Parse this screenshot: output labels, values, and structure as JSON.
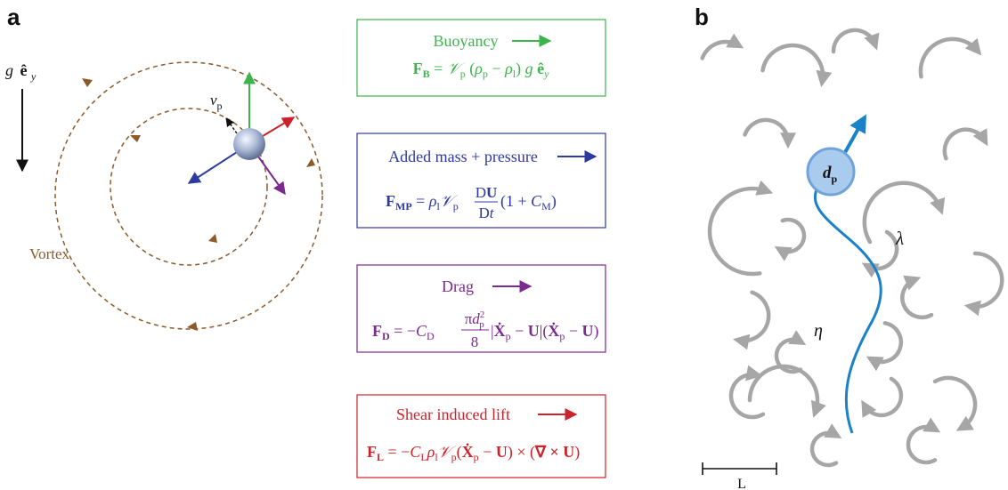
{
  "panel_a": {
    "label": "a",
    "gravity": {
      "g": "g",
      "e": "ê",
      "sub": "y"
    },
    "velocity": {
      "v": "v",
      "sub": "p"
    },
    "vortex_label": "Vortex"
  },
  "forces": [
    {
      "title": "Buoyancy",
      "color": "#3cb44b",
      "eq": "F_B = 𝒱_p (ρ_p − ρ_l) g ê_y"
    },
    {
      "title": "Added mass + pressure",
      "color": "#2e3a9e",
      "eq": "F_MP = ρ_l 𝒱_p DU/Dt (1 + C_M)"
    },
    {
      "title": "Drag",
      "color": "#7b2a8e",
      "eq": "F_D = −C_D (π d_p² / 8) |Ẋ_p − U|(Ẋ_p − U)"
    },
    {
      "title": "Shear induced lift",
      "color": "#cc2229",
      "eq": "F_L = −C_L ρ_l 𝒱_p (Ẋ_p − U) × (∇ × U)"
    }
  ],
  "panel_b": {
    "label": "b",
    "particle": {
      "d": "d",
      "sub": "p"
    },
    "lambda": "λ",
    "eta": "η",
    "scale": "L"
  },
  "colors": {
    "vortex": "#8b5a2b",
    "eddy": "#a6a6a6",
    "trajectory": "#1a82c8",
    "particle_fill": "#a9cbee",
    "particle_stroke": "#6fa3d9"
  }
}
